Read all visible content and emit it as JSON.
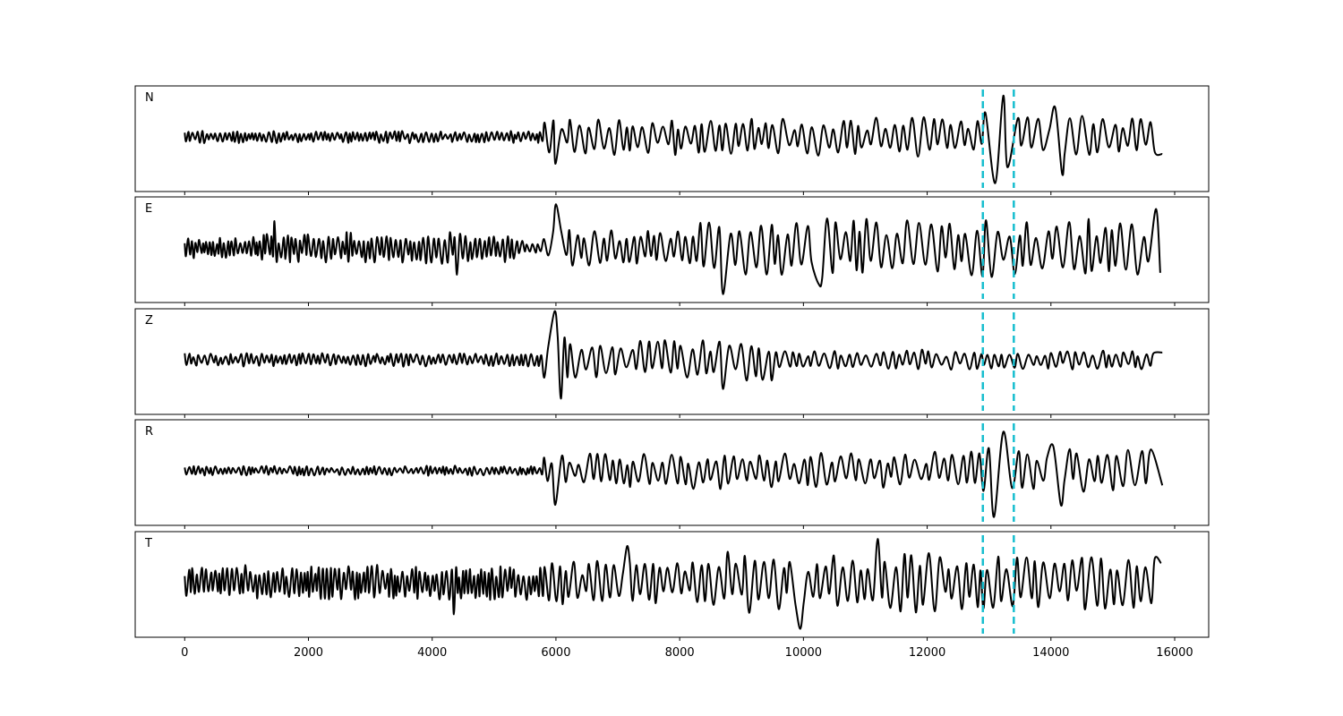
{
  "chart_data": {
    "type": "line",
    "layout": "stacked-panels",
    "title": "",
    "xlabel": "",
    "ylabel": "",
    "xlim": [
      -800,
      16550
    ],
    "xticks": [
      0,
      2000,
      4000,
      6000,
      8000,
      10000,
      12000,
      14000,
      16000
    ],
    "x_range": [
      0,
      15800
    ],
    "y_axis_visible": false,
    "grid": false,
    "line_color": "#000000",
    "marker_color": "#17becf",
    "vertical_markers": [
      12900,
      13400
    ],
    "panels": [
      {
        "label": "N",
        "segments": [
          {
            "x_end": 5800,
            "amp": 0.12,
            "period": 70
          },
          {
            "x_end": 9500,
            "amp": 0.38,
            "period": 140
          },
          {
            "x_end": 12900,
            "amp": 0.42,
            "period": 150
          },
          {
            "x_end": 13400,
            "amp": 0.85,
            "period": 260
          },
          {
            "x_end": 15800,
            "amp": 0.45,
            "period": 170
          }
        ],
        "features": [
          {
            "x": 5990,
            "y": -0.55
          },
          {
            "x": 13100,
            "y": -0.95
          },
          {
            "x": 13230,
            "y": 0.85
          },
          {
            "x": 14180,
            "y": -0.75
          },
          {
            "x": 14070,
            "y": 0.6
          },
          {
            "x": 15800,
            "y": -0.35
          }
        ]
      },
      {
        "label": "E",
        "segments": [
          {
            "x_end": 1200,
            "amp": 0.22,
            "period": 60
          },
          {
            "x_end": 5400,
            "amp": 0.32,
            "period": 75
          },
          {
            "x_end": 5800,
            "amp": 0.15,
            "period": 90
          },
          {
            "x_end": 8300,
            "amp": 0.38,
            "period": 130
          },
          {
            "x_end": 15800,
            "amp": 0.6,
            "period": 150
          }
        ],
        "features": [
          {
            "x": 1450,
            "y": 0.55
          },
          {
            "x": 4400,
            "y": -0.55
          },
          {
            "x": 6000,
            "y": 0.9
          },
          {
            "x": 8700,
            "y": -0.95
          },
          {
            "x": 10250,
            "y": -0.75
          },
          {
            "x": 15700,
            "y": 0.8
          }
        ]
      },
      {
        "label": "Z",
        "segments": [
          {
            "x_end": 5800,
            "amp": 0.14,
            "period": 80
          },
          {
            "x_end": 6300,
            "amp": 0.55,
            "period": 120
          },
          {
            "x_end": 9500,
            "amp": 0.42,
            "period": 150
          },
          {
            "x_end": 15800,
            "amp": 0.2,
            "period": 130
          }
        ],
        "features": [
          {
            "x": 5980,
            "y": 1.0
          },
          {
            "x": 6080,
            "y": -0.8
          },
          {
            "x": 8750,
            "y": 0.55
          },
          {
            "x": 8700,
            "y": -0.6
          },
          {
            "x": 15800,
            "y": 0.15
          }
        ]
      },
      {
        "label": "R",
        "segments": [
          {
            "x_end": 5800,
            "amp": 0.1,
            "period": 75
          },
          {
            "x_end": 9500,
            "amp": 0.36,
            "period": 140
          },
          {
            "x_end": 12900,
            "amp": 0.38,
            "period": 150
          },
          {
            "x_end": 13400,
            "amp": 0.8,
            "period": 260
          },
          {
            "x_end": 15800,
            "amp": 0.45,
            "period": 170
          }
        ],
        "features": [
          {
            "x": 5990,
            "y": -0.7
          },
          {
            "x": 13080,
            "y": -0.95
          },
          {
            "x": 13230,
            "y": 0.8
          },
          {
            "x": 14160,
            "y": -0.7
          },
          {
            "x": 14040,
            "y": 0.5
          },
          {
            "x": 15800,
            "y": -0.3
          }
        ]
      },
      {
        "label": "T",
        "segments": [
          {
            "x_end": 5800,
            "amp": 0.35,
            "period": 70
          },
          {
            "x_end": 8500,
            "amp": 0.45,
            "period": 120
          },
          {
            "x_end": 12900,
            "amp": 0.6,
            "period": 140
          },
          {
            "x_end": 15800,
            "amp": 0.55,
            "period": 150
          }
        ],
        "features": [
          {
            "x": 4350,
            "y": -0.65
          },
          {
            "x": 7150,
            "y": 0.75
          },
          {
            "x": 9950,
            "y": -0.95
          },
          {
            "x": 11200,
            "y": 0.9
          },
          {
            "x": 15780,
            "y": 0.4
          }
        ]
      }
    ]
  }
}
